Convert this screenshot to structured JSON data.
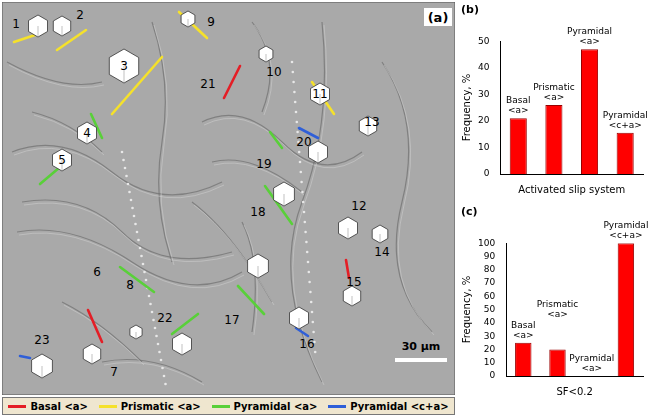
{
  "micrograph": {
    "panel": "(a)",
    "scale_bar": "30 μm",
    "slip_systems": [
      {
        "name": "Basal <a>",
        "color": "#e41e26"
      },
      {
        "name": "Prismatic <a>",
        "color": "#f5e12b"
      },
      {
        "name": "Pyramidal <a>",
        "color": "#59d039"
      },
      {
        "name": "Pyramidal <c+a>",
        "color": "#2f5fd8"
      }
    ],
    "grains": [
      {
        "label": "1",
        "slip": "Prismatic <a>"
      },
      {
        "label": "2",
        "slip": "Prismatic <a>"
      },
      {
        "label": "3",
        "slip": "Prismatic <a>"
      },
      {
        "label": "4",
        "slip": "Pyramidal <a>"
      },
      {
        "label": "5",
        "slip": "Pyramidal <a>"
      },
      {
        "label": "6",
        "slip": null
      },
      {
        "label": "7",
        "slip": "Basal <a>"
      },
      {
        "label": "8",
        "slip": "Pyramidal <a>"
      },
      {
        "label": "9",
        "slip": "Prismatic <a>"
      },
      {
        "label": "10",
        "slip": null
      },
      {
        "label": "11",
        "slip": "Prismatic <a>"
      },
      {
        "label": "12",
        "slip": null
      },
      {
        "label": "13",
        "slip": null
      },
      {
        "label": "14",
        "slip": null
      },
      {
        "label": "15",
        "slip": "Basal <a>"
      },
      {
        "label": "16",
        "slip": "Pyramidal <c+a>"
      },
      {
        "label": "17",
        "slip": "Pyramidal <a>"
      },
      {
        "label": "18",
        "slip": "Pyramidal <a>"
      },
      {
        "label": "19",
        "slip": "Pyramidal <a>"
      },
      {
        "label": "20",
        "slip": "Pyramidal <c+a>"
      },
      {
        "label": "21",
        "slip": "Basal <a>"
      },
      {
        "label": "22",
        "slip": "Pyramidal <a>"
      },
      {
        "label": "23",
        "slip": "Pyramidal <c+a>"
      }
    ]
  },
  "chart_data": [
    {
      "type": "bar",
      "title": "(b)",
      "xlabel": "Activated slip system",
      "ylabel": "Frequency, %",
      "categories": [
        "Basal <a>",
        "Prismatic <a>",
        "Pyramidal <a>",
        "Pyramidal <c+a>"
      ],
      "values": [
        21,
        26,
        47,
        15.5
      ],
      "color": "#ff0000",
      "ylim": [
        0,
        50
      ],
      "yticks": [
        0,
        10,
        20,
        30,
        40,
        50
      ],
      "grid": false,
      "tick_labels": "y"
    },
    {
      "type": "bar",
      "title": "(c)",
      "xlabel": "SF<0.2",
      "ylabel": "Frequency, %",
      "categories": [
        "Basal <a>",
        "Prismatic <a>",
        "Pyramidal <a>",
        "Pyramidal <c+a>"
      ],
      "values": [
        25,
        20,
        0,
        100
      ],
      "color": "#ff0000",
      "ylim": [
        0,
        100
      ],
      "yticks": [
        0,
        10,
        20,
        30,
        40,
        50,
        60,
        70,
        80,
        90,
        100
      ],
      "grid": false,
      "tick_labels": "y"
    }
  ]
}
